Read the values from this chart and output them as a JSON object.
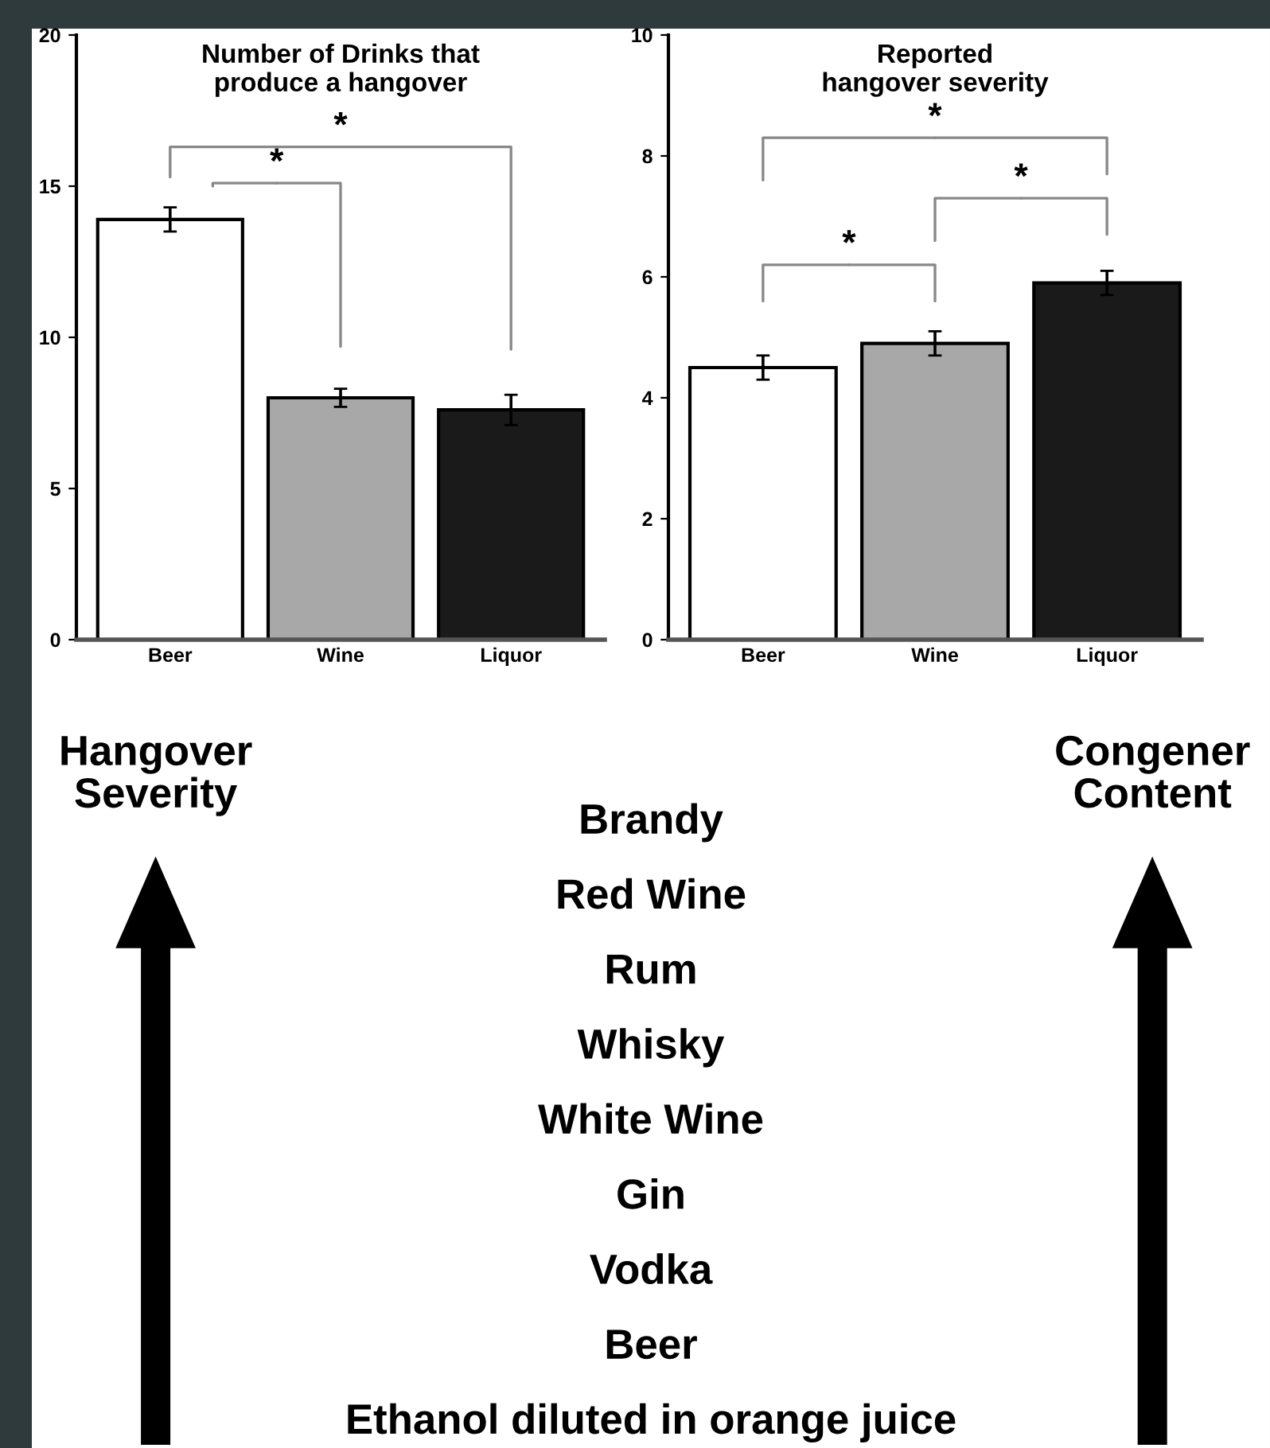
{
  "chart_data": [
    {
      "type": "bar",
      "title": "Number of Drinks that\nproduce a hangover",
      "categories": [
        "Beer",
        "Wine",
        "Liquor"
      ],
      "values": [
        13.9,
        8.0,
        7.6
      ],
      "errors": [
        0.4,
        0.3,
        0.5
      ],
      "colors": [
        "#ffffff",
        "#a8a8a8",
        "#1a1a1a"
      ],
      "ylim": [
        0,
        20
      ],
      "yticks": [
        0,
        5,
        10,
        15,
        20
      ],
      "annotations": [
        "*",
        "*"
      ],
      "grid": false
    },
    {
      "type": "bar",
      "title": "Reported\nhangover severity",
      "categories": [
        "Beer",
        "Wine",
        "Liquor"
      ],
      "values": [
        4.5,
        4.9,
        5.9
      ],
      "errors": [
        0.2,
        0.2,
        0.2
      ],
      "colors": [
        "#ffffff",
        "#a8a8a8",
        "#1a1a1a"
      ],
      "ylim": [
        0,
        10
      ],
      "yticks": [
        0,
        2,
        4,
        6,
        8,
        10
      ],
      "annotations": [
        "*",
        "*",
        "*"
      ],
      "grid": false
    },
    {
      "type": "other",
      "annotations": [
        "Hangover\nSeverity",
        "Congener\nContent",
        "Brandy",
        "Red Wine",
        "Rum",
        "Whisky",
        "White Wine",
        "Gin",
        "Vodka",
        "Beer",
        "Ethanol diluted in orange juice"
      ]
    }
  ]
}
